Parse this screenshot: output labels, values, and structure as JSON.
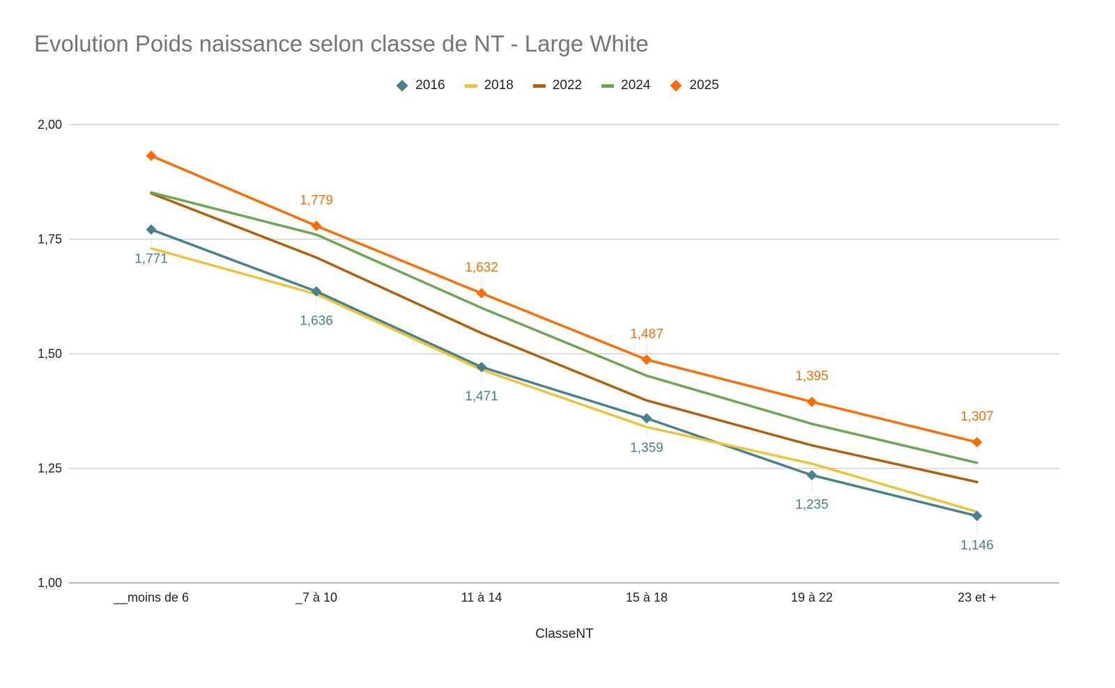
{
  "chart_data": {
    "type": "line",
    "title": "Evolution Poids naissance selon classe de NT - Large White",
    "xlabel": "ClasseNT",
    "ylabel": "",
    "categories": [
      "__moins de 6",
      "_7 à 10",
      "11 à 14",
      "15 à 18",
      "19 à 22",
      "23 et +"
    ],
    "ylim": [
      1.0,
      2.0
    ],
    "yticks": [
      1.0,
      1.25,
      1.5,
      1.75,
      2.0
    ],
    "ytick_labels": [
      "1,00",
      "1,25",
      "1,50",
      "1,75",
      "2,00"
    ],
    "grid": "horizontal",
    "legend_position": "top-center",
    "series": [
      {
        "name": "2016",
        "color": "#45818e",
        "marker": "diamond",
        "values": [
          1.771,
          1.636,
          1.471,
          1.359,
          1.235,
          1.146
        ],
        "labels": [
          "1,771",
          "1,636",
          "1,471",
          "1,359",
          "1,235",
          "1,146"
        ],
        "label_position": "below"
      },
      {
        "name": "2018",
        "color": "#f1c232",
        "marker": "none",
        "values": [
          1.73,
          1.63,
          1.465,
          1.34,
          1.26,
          1.155
        ]
      },
      {
        "name": "2022",
        "color": "#b45f06",
        "marker": "none",
        "values": [
          1.85,
          1.71,
          1.545,
          1.398,
          1.3,
          1.22
        ]
      },
      {
        "name": "2024",
        "color": "#6aa84f",
        "marker": "none",
        "values": [
          1.852,
          1.76,
          1.6,
          1.452,
          1.347,
          1.262
        ]
      },
      {
        "name": "2025",
        "color": "#ff6d01",
        "marker": "diamond",
        "values": [
          1.932,
          1.779,
          1.632,
          1.487,
          1.395,
          1.307
        ],
        "labels": [
          "",
          "1,779",
          "1,632",
          "1,487",
          "1,395",
          "1,307"
        ],
        "label_position": "above"
      }
    ]
  }
}
